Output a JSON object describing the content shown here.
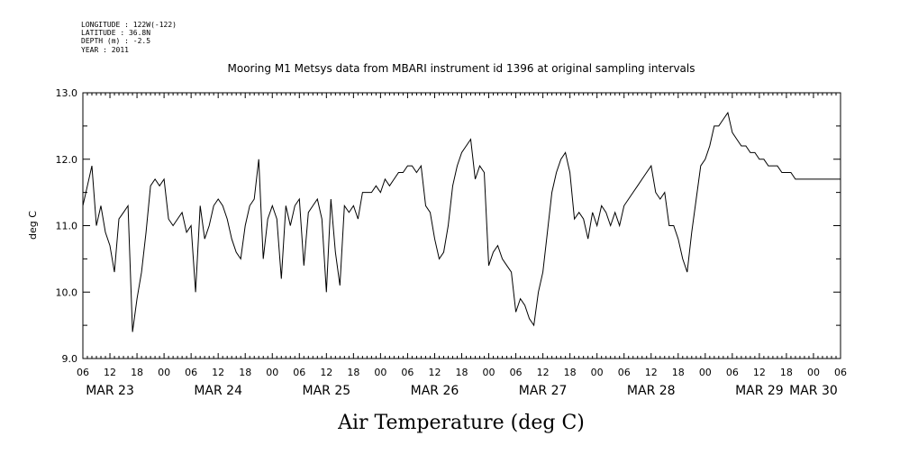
{
  "header_meta": {
    "longitude": "LONGITUDE : 122W(-122)",
    "latitude": "LATITUDE : 36.8N",
    "depth": "DEPTH (m) : -2.5",
    "year": "YEAR : 2011"
  },
  "title": "Mooring M1 Metsys data from MBARI instrument id 1396 at original sampling intervals",
  "bottom_title": "Air Temperature (deg C)",
  "chart_data": {
    "type": "line",
    "title": "Mooring M1 Metsys data from MBARI instrument id 1396 at original sampling intervals",
    "xlabel": "Air Temperature (deg C)",
    "ylabel": "deg C",
    "ylim": [
      9.0,
      13.0
    ],
    "yticks": [
      "9.0",
      "10.0",
      "11.0",
      "12.0",
      "13.0"
    ],
    "x_unit": "hours since MAR 23 00",
    "xlim": [
      6,
      174
    ],
    "hour_tick_labels": [
      "06",
      "12",
      "18",
      "00",
      "06",
      "12",
      "18",
      "00",
      "06",
      "12",
      "18",
      "00",
      "06",
      "12",
      "18",
      "00",
      "06",
      "12",
      "18",
      "00",
      "06",
      "12",
      "18",
      "00",
      "06",
      "12",
      "18",
      "00",
      "06"
    ],
    "day_labels": [
      {
        "label": "MAR 23",
        "hour": 12
      },
      {
        "label": "MAR 24",
        "hour": 36
      },
      {
        "label": "MAR 25",
        "hour": 60
      },
      {
        "label": "MAR 26",
        "hour": 84
      },
      {
        "label": "MAR 27",
        "hour": 108
      },
      {
        "label": "MAR 28",
        "hour": 132
      },
      {
        "label": "MAR 29",
        "hour": 156
      },
      {
        "label": "MAR 30",
        "hour": 168
      }
    ],
    "series": [
      {
        "name": "",
        "x": [
          6,
          7,
          8,
          9,
          10,
          11,
          12,
          13,
          14,
          15,
          16,
          17,
          18,
          19,
          20,
          21,
          22,
          23,
          24,
          25,
          26,
          27,
          28,
          29,
          30,
          31,
          32,
          33,
          34,
          35,
          36,
          37,
          38,
          39,
          40,
          41,
          42,
          43,
          44,
          45,
          46,
          47,
          48,
          49,
          50,
          51,
          52,
          53,
          54,
          55,
          56,
          57,
          58,
          59,
          60,
          61,
          62,
          63,
          64,
          65,
          66,
          67,
          68,
          69,
          70,
          71,
          72,
          73,
          74,
          75,
          76,
          77,
          78,
          79,
          80,
          81,
          82,
          83,
          84,
          85,
          86,
          87,
          88,
          89,
          90,
          91,
          92,
          93,
          94,
          95,
          96,
          97,
          98,
          99,
          100,
          101,
          102,
          103,
          104,
          105,
          106,
          107,
          108,
          109,
          110,
          111,
          112,
          113,
          114,
          115,
          116,
          117,
          118,
          119,
          120,
          121,
          122,
          123,
          124,
          125,
          126,
          127,
          128,
          129,
          130,
          131,
          132,
          133,
          134,
          135,
          136,
          137,
          138,
          139,
          140,
          141,
          142,
          143,
          144,
          145,
          146,
          147,
          148,
          149,
          150,
          151,
          152,
          153,
          154,
          155,
          156,
          157,
          158,
          159,
          160,
          161,
          162,
          163,
          164,
          165,
          166,
          167,
          168,
          169,
          170,
          171,
          172,
          173,
          174
        ],
        "values": [
          11.3,
          11.6,
          11.9,
          11.0,
          11.3,
          10.9,
          10.7,
          10.3,
          11.1,
          11.2,
          11.3,
          9.4,
          9.9,
          10.3,
          10.9,
          11.6,
          11.7,
          11.6,
          11.7,
          11.1,
          11.0,
          11.1,
          11.2,
          10.9,
          11.0,
          10.0,
          11.3,
          10.8,
          11.0,
          11.3,
          11.4,
          11.3,
          11.1,
          10.8,
          10.6,
          10.5,
          11.0,
          11.3,
          11.4,
          12.0,
          10.5,
          11.1,
          11.3,
          11.1,
          10.2,
          11.3,
          11.0,
          11.3,
          11.4,
          10.4,
          11.2,
          11.3,
          11.4,
          11.1,
          10.0,
          11.4,
          10.6,
          10.1,
          11.3,
          11.2,
          11.3,
          11.1,
          11.5,
          11.5,
          11.5,
          11.6,
          11.5,
          11.7,
          11.6,
          11.7,
          11.8,
          11.8,
          11.9,
          11.9,
          11.8,
          11.9,
          11.3,
          11.2,
          10.8,
          10.5,
          10.6,
          11.0,
          11.6,
          11.9,
          12.1,
          12.2,
          12.3,
          11.7,
          11.9,
          11.8,
          10.4,
          10.6,
          10.7,
          10.5,
          10.4,
          10.3,
          9.7,
          9.9,
          9.8,
          9.6,
          9.5,
          10.0,
          10.3,
          10.9,
          11.5,
          11.8,
          12.0,
          12.1,
          11.8,
          11.1,
          11.2,
          11.1,
          10.8,
          11.2,
          11.0,
          11.3,
          11.2,
          11.0,
          11.2,
          11.0,
          11.3,
          11.4,
          11.5,
          11.6,
          11.7,
          11.8,
          11.9,
          11.5,
          11.4,
          11.5,
          11.0,
          11.0,
          10.8,
          10.5,
          10.3,
          10.9,
          11.4,
          11.9,
          12.0,
          12.2,
          12.5,
          12.5,
          12.6,
          12.7,
          12.4,
          12.3,
          12.2,
          12.2,
          12.1,
          12.1,
          12.0,
          12.0,
          11.9,
          11.9,
          11.9,
          11.8,
          11.8,
          11.8,
          11.7,
          11.7,
          11.7,
          11.7,
          11.7,
          11.7,
          11.7,
          11.7,
          11.7,
          11.7,
          11.7
        ]
      }
    ]
  }
}
